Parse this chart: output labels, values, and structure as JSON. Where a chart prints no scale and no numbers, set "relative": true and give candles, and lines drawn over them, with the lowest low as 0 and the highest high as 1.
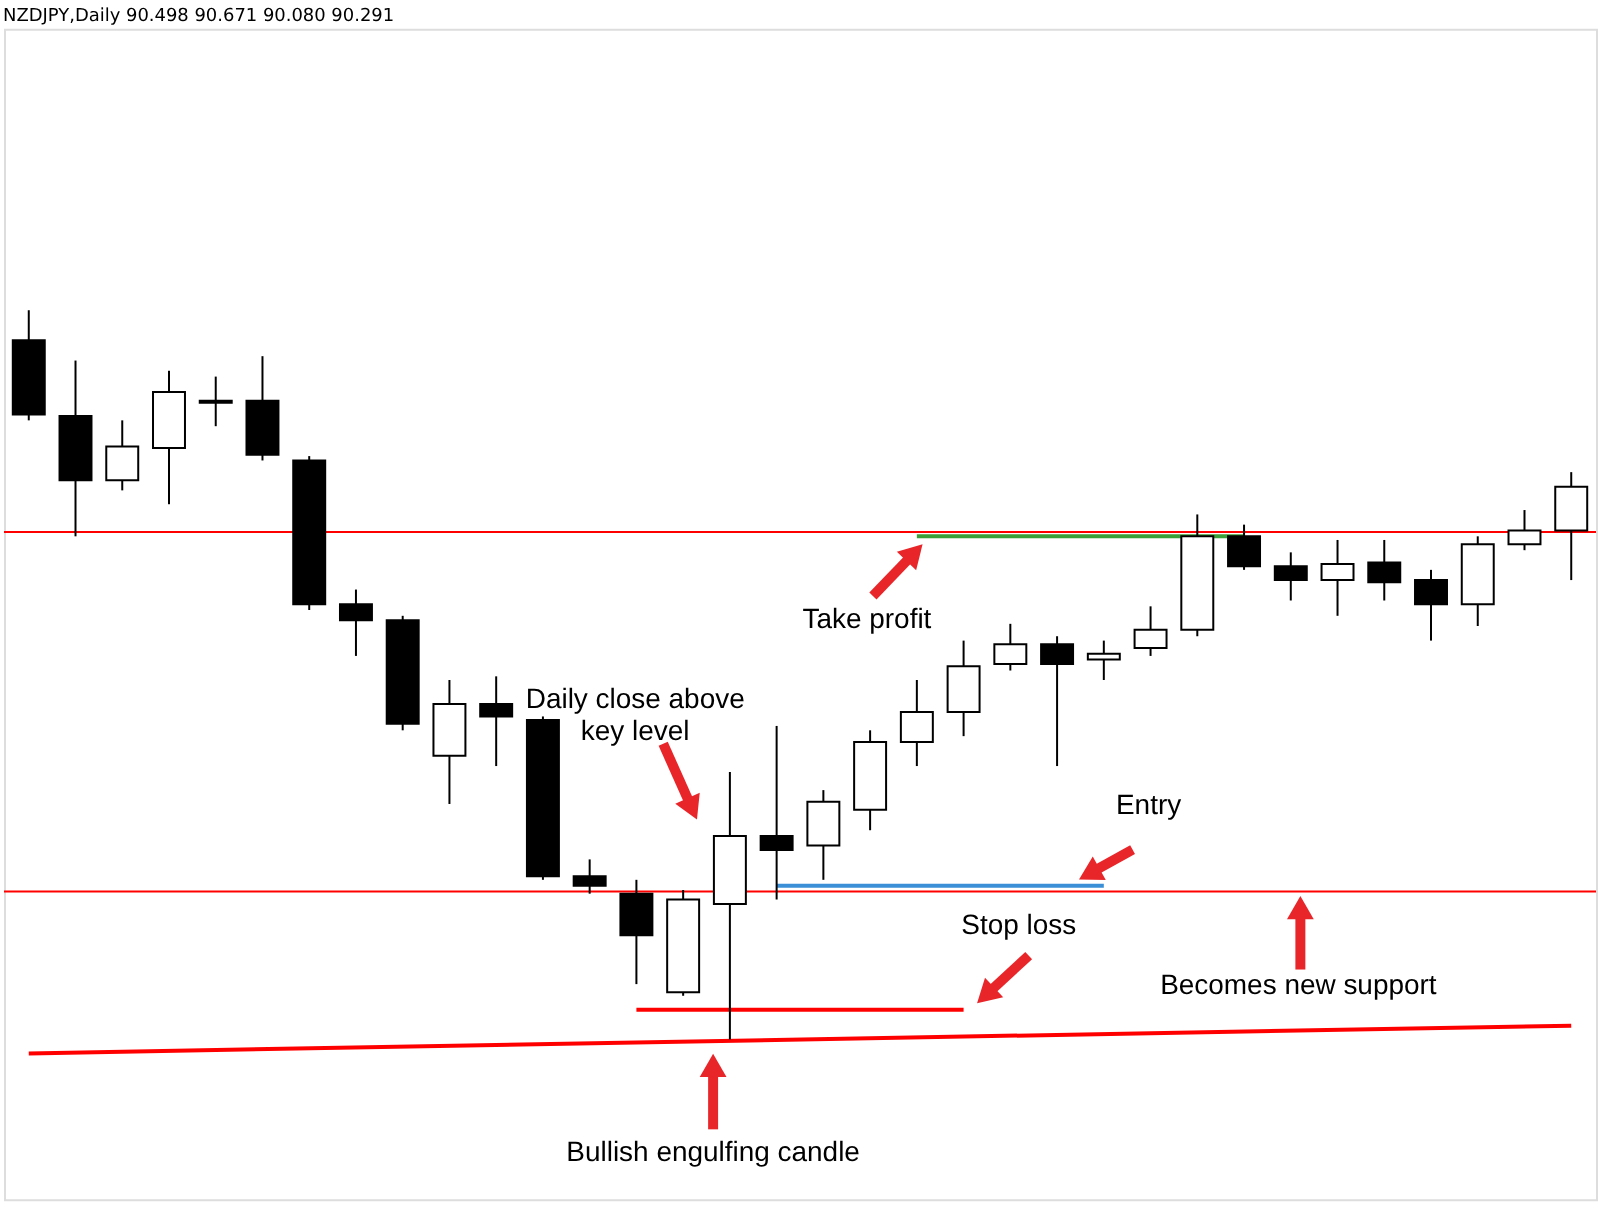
{
  "chart_data": {
    "type": "candlestick",
    "title": "NZDJPY,Daily  90.498 90.671 90.080 90.291",
    "relative": true,
    "categories": [
      null,
      null,
      null,
      null,
      null,
      null,
      null,
      null,
      null,
      null,
      null,
      null,
      null,
      null,
      null,
      null,
      null,
      null,
      null,
      null,
      null,
      null,
      null,
      null,
      null,
      null,
      null,
      null,
      null,
      null,
      null,
      null,
      null,
      null
    ],
    "ohlc": [
      [
        0.959,
        1.0,
        0.849,
        0.857
      ],
      [
        0.855,
        0.931,
        0.69,
        0.767
      ],
      [
        0.767,
        0.849,
        0.753,
        0.813
      ],
      [
        0.811,
        0.917,
        0.734,
        0.888
      ],
      [
        0.876,
        0.909,
        0.841,
        0.873
      ],
      [
        0.876,
        0.937,
        0.794,
        0.802
      ],
      [
        0.794,
        0.8,
        0.589,
        0.597
      ],
      [
        0.597,
        0.617,
        0.526,
        0.575
      ],
      [
        0.575,
        0.581,
        0.424,
        0.433
      ],
      [
        0.389,
        0.493,
        0.323,
        0.46
      ],
      [
        0.46,
        0.498,
        0.375,
        0.443
      ],
      [
        0.438,
        0.443,
        0.219,
        0.224
      ],
      [
        0.224,
        0.247,
        0.2,
        0.211
      ],
      [
        0.2,
        0.219,
        0.076,
        0.143
      ],
      [
        0.065,
        0.205,
        0.06,
        0.192
      ],
      [
        0.186,
        0.367,
        0,
        0.279
      ],
      [
        0.279,
        0.43,
        0.192,
        0.26
      ],
      [
        0.266,
        0.342,
        0.219,
        0.326
      ],
      [
        0.315,
        0.424,
        0.287,
        0.408
      ],
      [
        0.408,
        0.493,
        0.375,
        0.449
      ],
      [
        0.449,
        0.547,
        0.416,
        0.512
      ],
      [
        0.515,
        0.57,
        0.506,
        0.542
      ],
      [
        0.542,
        0.553,
        0.375,
        0.515
      ],
      [
        0.521,
        0.547,
        0.493,
        0.529
      ],
      [
        0.537,
        0.594,
        0.526,
        0.562
      ],
      [
        0.562,
        0.72,
        0.553,
        0.69
      ],
      [
        0.69,
        0.706,
        0.644,
        0.649
      ],
      [
        0.649,
        0.668,
        0.602,
        0.63
      ],
      [
        0.63,
        0.685,
        0.581,
        0.652
      ],
      [
        0.654,
        0.685,
        0.602,
        0.627
      ],
      [
        0.63,
        0.644,
        0.547,
        0.597
      ],
      [
        0.597,
        0.69,
        0.567,
        0.679
      ],
      [
        0.679,
        0.726,
        0.671,
        0.698
      ],
      [
        0.698,
        0.778,
        0.63,
        0.758
      ]
    ],
    "series": [
      {
        "type": "line",
        "color": "#ff0000",
        "values": [
          -0.019,
          null,
          null,
          null,
          null,
          null,
          null,
          null,
          null,
          null,
          null,
          null,
          null,
          null,
          null,
          null,
          null,
          null,
          null,
          null,
          null,
          null,
          null,
          null,
          null,
          null,
          null,
          null,
          null,
          null,
          null,
          null,
          null,
          0.019
        ]
      },
      {
        "type": "line",
        "color": "#ff0000",
        "values": [
          null,
          null,
          null,
          null,
          null,
          null,
          null,
          null,
          null,
          null,
          null,
          null,
          null,
          0.041,
          null,
          null,
          null,
          null,
          null,
          null,
          0.041,
          null,
          null,
          null,
          null,
          null,
          null,
          null,
          null,
          null,
          null,
          null,
          null,
          null
        ]
      },
      {
        "type": "line",
        "color": "#3a8fd6",
        "values": [
          null,
          null,
          null,
          null,
          null,
          null,
          null,
          null,
          null,
          null,
          null,
          null,
          null,
          null,
          null,
          null,
          0.211,
          null,
          null,
          null,
          null,
          null,
          null,
          0.211,
          null,
          null,
          null,
          null,
          null,
          null,
          null,
          null,
          null,
          null
        ]
      },
      {
        "type": "line",
        "color": "#3aa13a",
        "values": [
          null,
          null,
          null,
          null,
          null,
          null,
          null,
          null,
          null,
          null,
          null,
          null,
          null,
          null,
          null,
          null,
          null,
          null,
          null,
          0.69,
          null,
          null,
          null,
          null,
          null,
          null,
          0.69,
          null,
          null,
          null,
          null,
          null,
          null,
          null
        ]
      }
    ],
    "ref_lines": [
      {
        "axis": "y",
        "value": 0.696,
        "color": "#ff0000"
      },
      {
        "axis": "y",
        "value": 0.203,
        "color": "#ff0000"
      }
    ],
    "annotations": [
      "Daily close above\nkey level",
      "Take profit",
      "Entry",
      "Stop loss",
      "Becomes new support",
      "Bullish engulfing candle"
    ]
  }
}
